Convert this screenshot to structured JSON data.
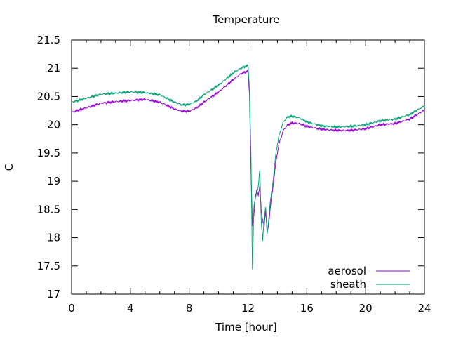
{
  "chart_data": {
    "type": "line",
    "title": "Temperature",
    "xlabel": "Time [hour]",
    "ylabel": "C",
    "xlim": [
      0,
      24
    ],
    "ylim": [
      17,
      21.5
    ],
    "xticks": [
      0,
      4,
      8,
      12,
      16,
      20,
      24
    ],
    "xtick_labels": [
      "0",
      "4",
      "8",
      "12",
      "16",
      "20",
      "24"
    ],
    "yticks": [
      17,
      17.5,
      18,
      18.5,
      19,
      19.5,
      20,
      20.5,
      21,
      21.5
    ],
    "ytick_labels": [
      "17",
      "17.5",
      "18",
      "18.5",
      "19",
      "19.5",
      "20",
      "20.5",
      "21",
      "21.5"
    ],
    "grid": false,
    "legend_position": "bottom-right",
    "series": [
      {
        "name": "aerosol",
        "color": "#9400d3",
        "x": [
          0,
          1,
          2,
          3,
          4,
          5,
          6,
          7,
          7.5,
          8,
          8.5,
          9,
          10,
          11,
          11.5,
          12,
          12.1,
          12.2,
          12.3,
          12.4,
          12.5,
          12.6,
          12.7,
          12.8,
          12.9,
          13,
          13.1,
          13.2,
          13.3,
          13.4,
          13.5,
          13.7,
          13.9,
          14.1,
          14.4,
          14.7,
          15,
          15.5,
          16,
          17,
          18,
          19,
          20,
          21,
          22,
          23,
          23.5,
          24
        ],
        "y": [
          20.22,
          20.3,
          20.38,
          20.41,
          20.43,
          20.45,
          20.4,
          20.28,
          20.24,
          20.24,
          20.3,
          20.4,
          20.58,
          20.8,
          20.9,
          20.95,
          20.55,
          19.2,
          18.2,
          18.4,
          18.7,
          18.85,
          18.75,
          18.9,
          18.5,
          18.3,
          18.2,
          18.5,
          18.1,
          18.2,
          18.5,
          18.9,
          19.35,
          19.65,
          19.9,
          20.0,
          20.03,
          20.02,
          19.97,
          19.92,
          19.9,
          19.9,
          19.93,
          20.0,
          20.02,
          20.1,
          20.18,
          20.26
        ]
      },
      {
        "name": "sheath",
        "color": "#009e73",
        "x": [
          0,
          1,
          2,
          3,
          4,
          5,
          6,
          7,
          7.5,
          8,
          8.5,
          9,
          10,
          11,
          11.5,
          12,
          12.1,
          12.2,
          12.3,
          12.4,
          12.5,
          12.6,
          12.7,
          12.8,
          12.9,
          13,
          13.1,
          13.2,
          13.3,
          13.4,
          13.5,
          13.7,
          13.9,
          14.1,
          14.4,
          14.7,
          15,
          15.5,
          16,
          17,
          18,
          19,
          20,
          21,
          22,
          23,
          23.5,
          24
        ],
        "y": [
          20.4,
          20.47,
          20.54,
          20.56,
          20.58,
          20.57,
          20.53,
          20.4,
          20.35,
          20.36,
          20.42,
          20.53,
          20.7,
          20.92,
          21.0,
          21.05,
          20.65,
          19.5,
          17.45,
          18.55,
          18.7,
          18.8,
          18.9,
          19.2,
          18.3,
          17.95,
          18.35,
          18.55,
          18.05,
          18.3,
          18.6,
          19.0,
          19.5,
          19.8,
          20.05,
          20.14,
          20.15,
          20.12,
          20.05,
          19.98,
          19.96,
          19.97,
          20.0,
          20.07,
          20.1,
          20.18,
          20.26,
          20.33
        ]
      }
    ]
  }
}
